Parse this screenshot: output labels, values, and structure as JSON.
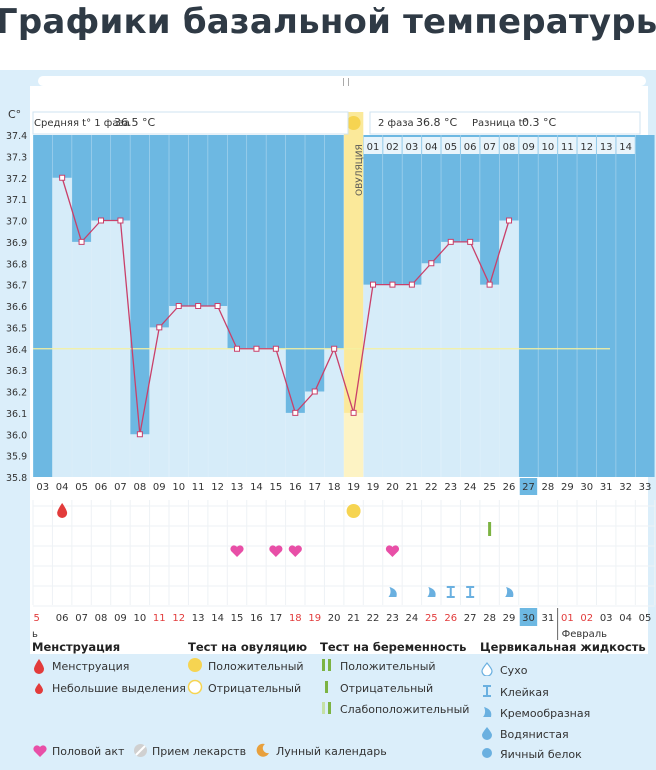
{
  "page_title": "Графики базальной температуры",
  "header": {
    "unit": "C°",
    "phase1": "Средняя t° 1 фаза",
    "phase1_value": "36.5 °C",
    "phase2": "2 фаза",
    "phase2_value": "36.8 °C",
    "diff": "Разница t°",
    "diff_value": "0.3 °C",
    "ovulation": "ОВУЛЯЦИЯ"
  },
  "chart_data": {
    "type": "line",
    "title": "Графики базальной температуры",
    "ylabel": "C°",
    "ylim": [
      35.8,
      37.4
    ],
    "y_ticks": [
      "35.8",
      "35.9",
      "36.0",
      "36.1",
      "36.2",
      "36.3",
      "36.4",
      "36.5",
      "36.6",
      "36.7",
      "36.8",
      "36.9",
      "37.0",
      "37.1",
      "37.2",
      "37.3",
      "37.4"
    ],
    "cycle_days": [
      "03",
      "04",
      "05",
      "06",
      "07",
      "08",
      "09",
      "10",
      "11",
      "12",
      "13",
      "14",
      "15",
      "16",
      "17",
      "18",
      "19",
      "19",
      "20",
      "21",
      "22",
      "23",
      "24",
      "25",
      "26",
      "27",
      "28",
      "29",
      "30",
      "31",
      "32",
      "33"
    ],
    "current_cycle_day": "27",
    "series": [
      {
        "name": "Базальная температура",
        "values": [
          null,
          37.2,
          36.9,
          37.0,
          37.0,
          36.0,
          36.5,
          36.6,
          36.6,
          36.6,
          36.4,
          36.4,
          36.4,
          36.1,
          36.2,
          36.4,
          36.1,
          36.7,
          36.7,
          36.7,
          36.8,
          36.9,
          36.9,
          36.7,
          37.0,
          null,
          null,
          null,
          null,
          null,
          null,
          null
        ]
      }
    ],
    "coverline": 36.4,
    "ovulation_column": 16,
    "phase2_days": [
      "01",
      "02",
      "03",
      "04",
      "05",
      "06",
      "07",
      "08",
      "09",
      "10",
      "11",
      "12",
      "13",
      "14"
    ],
    "phase2_start_column": 17,
    "calendar_dates": [
      "5",
      "06",
      "07",
      "08",
      "09",
      "10",
      "11",
      "12",
      "13",
      "14",
      "15",
      "16",
      "17",
      "18",
      "19",
      "20",
      "21",
      "22",
      "23",
      "24",
      "25",
      "26",
      "27",
      "28",
      "29",
      "30",
      "31",
      "01",
      "02",
      "03",
      "04",
      "05"
    ],
    "red_dates": [
      "5",
      "11",
      "12",
      "18",
      "19",
      "25",
      "26",
      "01",
      "02"
    ],
    "today_date": "30",
    "month_prev": "ь",
    "month_next": "Февраль",
    "markers": [
      {
        "type": "menstruation",
        "column": 1
      },
      {
        "type": "ovulation-test-positive",
        "column": 16
      },
      {
        "type": "pregnancy-test-negative",
        "column": 23
      },
      {
        "type": "intercourse",
        "column": 10
      },
      {
        "type": "intercourse",
        "column": 12
      },
      {
        "type": "intercourse",
        "column": 13
      },
      {
        "type": "intercourse",
        "column": 18
      },
      {
        "type": "creamy",
        "column": 18
      },
      {
        "type": "creamy",
        "column": 20
      },
      {
        "type": "sticky",
        "column": 21
      },
      {
        "type": "sticky",
        "column": 22
      },
      {
        "type": "creamy",
        "column": 24
      }
    ]
  },
  "legend": {
    "menstruation": {
      "title": "Менструация",
      "items": [
        "Менструация",
        "Небольшие выделения"
      ]
    },
    "ovulation_test": {
      "title": "Тест на овуляцию",
      "items": [
        "Положительный",
        "Отрицательный"
      ]
    },
    "pregnancy_test": {
      "title": "Тест на беременность",
      "items": [
        "Положительный",
        "Отрицательный",
        "Слабоположительный"
      ]
    },
    "cervical": {
      "title": "Цервикальная жидкость",
      "items": [
        "Сухо",
        "Клейкая",
        "Кремообразная",
        "Водянистая",
        "Яичный белок"
      ]
    },
    "bottom": [
      "Половой акт",
      "Прием лекарств",
      "Лунный календарь"
    ]
  },
  "colors": {
    "grid_bg": "#6db8e2",
    "bar": "#d6ecf9",
    "line": "#c9406a",
    "ovulation": "#fbe99a",
    "coverline": "#f5f0a0",
    "menstruation": "#e23b3b",
    "heart": "#e84fa7",
    "yellow": "#f6d451",
    "green": "#7cb342",
    "blue_drop": "#6ab0e0"
  }
}
